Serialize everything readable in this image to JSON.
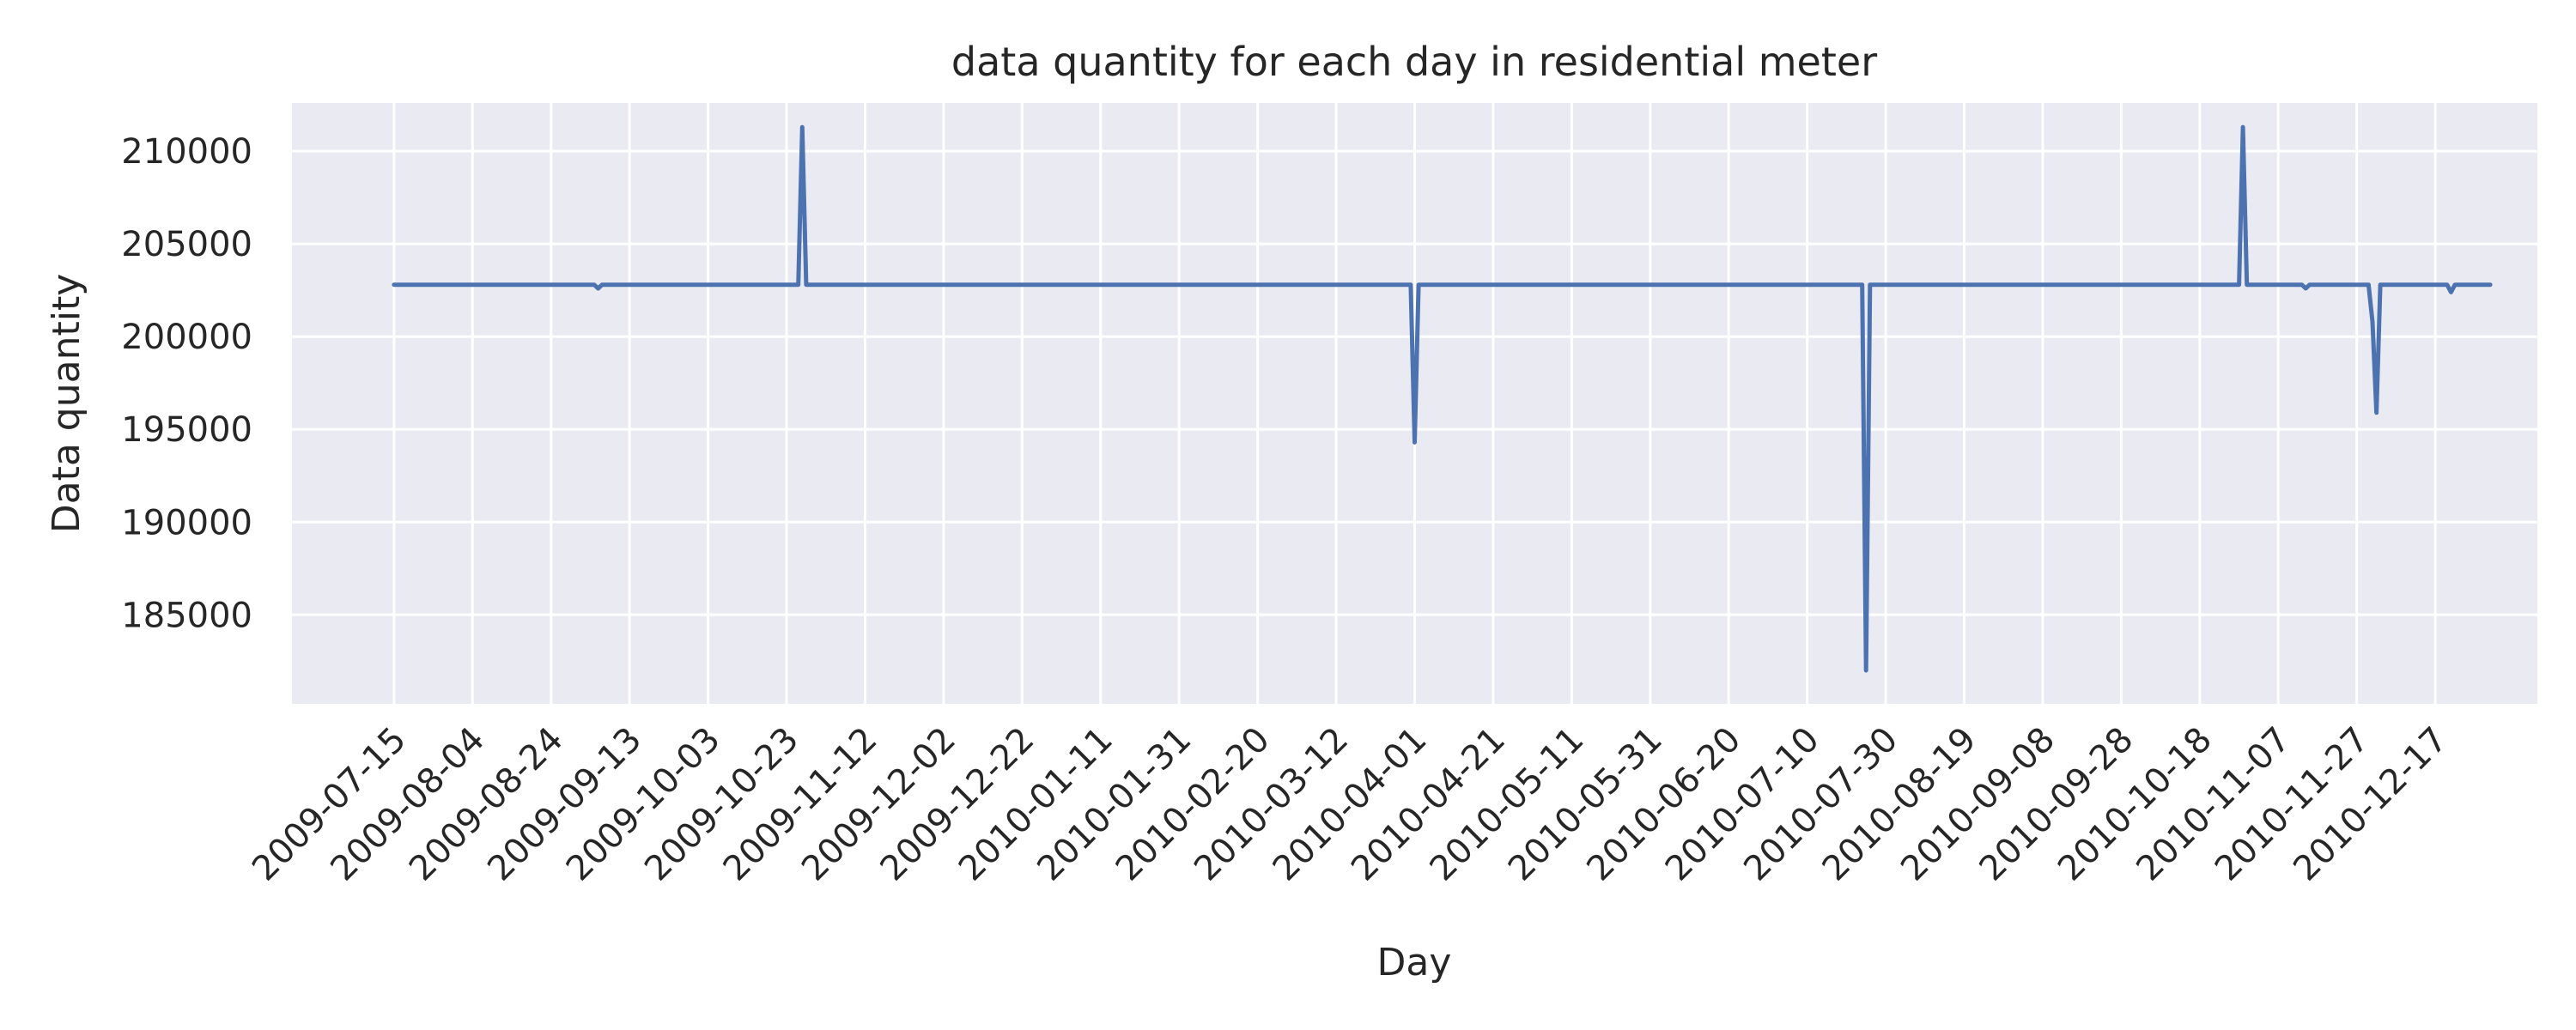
{
  "chart_data": {
    "type": "line",
    "title": "data quantity for each day in residential meter",
    "xlabel": "Day",
    "ylabel": "Data quantity",
    "x_tick_labels": [
      "2009-07-15",
      "2009-08-04",
      "2009-08-24",
      "2009-09-13",
      "2009-10-03",
      "2009-10-23",
      "2009-11-12",
      "2009-12-02",
      "2009-12-22",
      "2010-01-11",
      "2010-01-31",
      "2010-02-20",
      "2010-03-12",
      "2010-04-01",
      "2010-04-21",
      "2010-05-11",
      "2010-05-31",
      "2010-06-20",
      "2010-07-10",
      "2010-07-30",
      "2010-08-19",
      "2010-09-08",
      "2010-09-28",
      "2010-10-18",
      "2010-11-07",
      "2010-11-27",
      "2010-12-17"
    ],
    "y_ticks": [
      185000,
      190000,
      195000,
      200000,
      205000,
      210000
    ],
    "ylim": [
      180200,
      212600
    ],
    "xlim": [
      "2009-06-19",
      "2011-01-12"
    ],
    "grid": true,
    "series": [
      {
        "color": "#4c72b0",
        "points": [
          [
            "2009-07-15",
            202800
          ],
          [
            "2009-09-04",
            202800
          ],
          [
            "2009-09-05",
            202600
          ],
          [
            "2009-09-06",
            202800
          ],
          [
            "2009-10-26",
            202800
          ],
          [
            "2009-10-27",
            211300
          ],
          [
            "2009-10-28",
            202800
          ],
          [
            "2010-03-31",
            202800
          ],
          [
            "2010-04-01",
            194300
          ],
          [
            "2010-04-02",
            202800
          ],
          [
            "2010-07-24",
            202800
          ],
          [
            "2010-07-25",
            182000
          ],
          [
            "2010-07-26",
            202800
          ],
          [
            "2010-10-28",
            202800
          ],
          [
            "2010-10-29",
            211300
          ],
          [
            "2010-10-30",
            202800
          ],
          [
            "2010-11-13",
            202800
          ],
          [
            "2010-11-14",
            202600
          ],
          [
            "2010-11-15",
            202800
          ],
          [
            "2010-11-30",
            202800
          ],
          [
            "2010-12-01",
            200800
          ],
          [
            "2010-12-02",
            195900
          ],
          [
            "2010-12-03",
            202800
          ],
          [
            "2010-12-20",
            202800
          ],
          [
            "2010-12-21",
            202400
          ],
          [
            "2010-12-22",
            202800
          ],
          [
            "2010-12-31",
            202800
          ]
        ]
      }
    ]
  }
}
